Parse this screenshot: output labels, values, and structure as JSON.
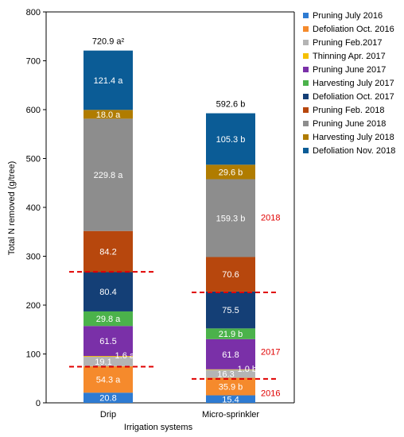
{
  "chart_data": {
    "type": "bar",
    "stacked": true,
    "xlabel": "Irrigation systems",
    "ylabel": "Total N removed (g/tree)",
    "ylim": [
      0,
      800
    ],
    "yticks": [
      0,
      100,
      200,
      300,
      400,
      500,
      600,
      700,
      800
    ],
    "categories": [
      "Drip",
      "Micro-sprinkler"
    ],
    "totals": [
      720.9,
      592.6
    ],
    "total_labels": [
      "720.9 a²",
      "592.6 b"
    ],
    "legend_position": "right",
    "series": [
      {
        "name": "Pruning July 2016",
        "color": "#2e7bd2",
        "values": [
          20.8,
          15.4
        ],
        "labels": [
          "20.8",
          "15.4"
        ]
      },
      {
        "name": "Defoliation Oct. 2016",
        "color": "#f58a2c",
        "values": [
          54.3,
          35.9
        ],
        "labels": [
          "54.3 a",
          "35.9 b"
        ]
      },
      {
        "name": "Pruning Feb.2017",
        "color": "#b4b4b4",
        "values": [
          19.1,
          16.3
        ],
        "labels": [
          "19.1",
          "16.3"
        ]
      },
      {
        "name": "Thinning Apr. 2017",
        "color": "#f5c000",
        "values": [
          1.6,
          1.0
        ],
        "labels": [
          "1.6 a",
          "1.0 b"
        ]
      },
      {
        "name": "Pruning June 2017",
        "color": "#7a30a8",
        "values": [
          61.5,
          61.8
        ],
        "labels": [
          "61.5",
          "61.8"
        ]
      },
      {
        "name": "Harvesting July 2017",
        "color": "#4bb24b",
        "values": [
          29.8,
          21.9
        ],
        "labels": [
          "29.8 a",
          "21.9 b"
        ]
      },
      {
        "name": "Defoliation Oct. 2017",
        "color": "#143f76",
        "values": [
          80.4,
          75.5
        ],
        "labels": [
          "80.4",
          "75.5"
        ]
      },
      {
        "name": "Pruning Feb. 2018",
        "color": "#b7470d",
        "values": [
          84.2,
          70.6
        ],
        "labels": [
          "84.2",
          "70.6"
        ]
      },
      {
        "name": "Pruning June 2018",
        "color": "#8d8d8d",
        "values": [
          229.8,
          159.3
        ],
        "labels": [
          "229.8 a",
          "159.3 b"
        ]
      },
      {
        "name": "Harvesting July 2018",
        "color": "#b07c00",
        "values": [
          18.0,
          29.6
        ],
        "labels": [
          "18.0 a",
          "29.6 b"
        ]
      },
      {
        "name": "Defoliation Nov. 2018",
        "color": "#0b5c96",
        "values": [
          121.4,
          105.3
        ],
        "labels": [
          "121.4 a",
          "105.3 b"
        ]
      }
    ],
    "year_annotations": [
      {
        "text": "2016",
        "y": 20
      },
      {
        "text": "2017",
        "y": 105
      },
      {
        "text": "2018",
        "y": 380
      }
    ],
    "year_dividers": [
      {
        "category": 0,
        "y": 74
      },
      {
        "category": 0,
        "y": 268
      },
      {
        "category": 1,
        "y": 49
      },
      {
        "category": 1,
        "y": 226
      }
    ]
  }
}
